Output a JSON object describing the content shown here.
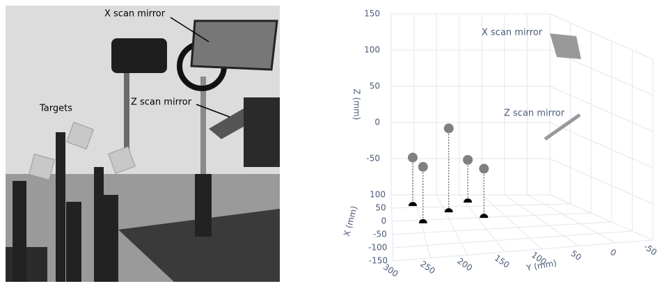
{
  "photo": {
    "labels": [
      "X scan mirror",
      "Z scan mirror",
      "Targets"
    ]
  },
  "chart_data": {
    "type": "scatter3d",
    "xlabel": "X (mm)",
    "ylabel": "Y (mm)",
    "zlabel": "Z (mm)",
    "x": [
      56,
      -13,
      27,
      66,
      -2
    ],
    "y": [
      258,
      247,
      194,
      145,
      139
    ],
    "z": [
      -33,
      -22,
      16,
      -41,
      -32
    ],
    "color": "#808080",
    "shadow_color": "#000000",
    "xlim": [
      -150,
      100
    ],
    "ylim": [
      -50,
      300
    ],
    "zlim": [
      -100,
      150
    ],
    "xticks": [
      100,
      50,
      0,
      -50,
      -100,
      -150
    ],
    "yticks": [
      300,
      250,
      200,
      150,
      100,
      50,
      0,
      -50
    ],
    "zticks": [
      -50,
      0,
      50,
      100,
      150
    ],
    "grid": true,
    "annotations": [
      "X scan mirror",
      "Z scan mirror"
    ]
  }
}
